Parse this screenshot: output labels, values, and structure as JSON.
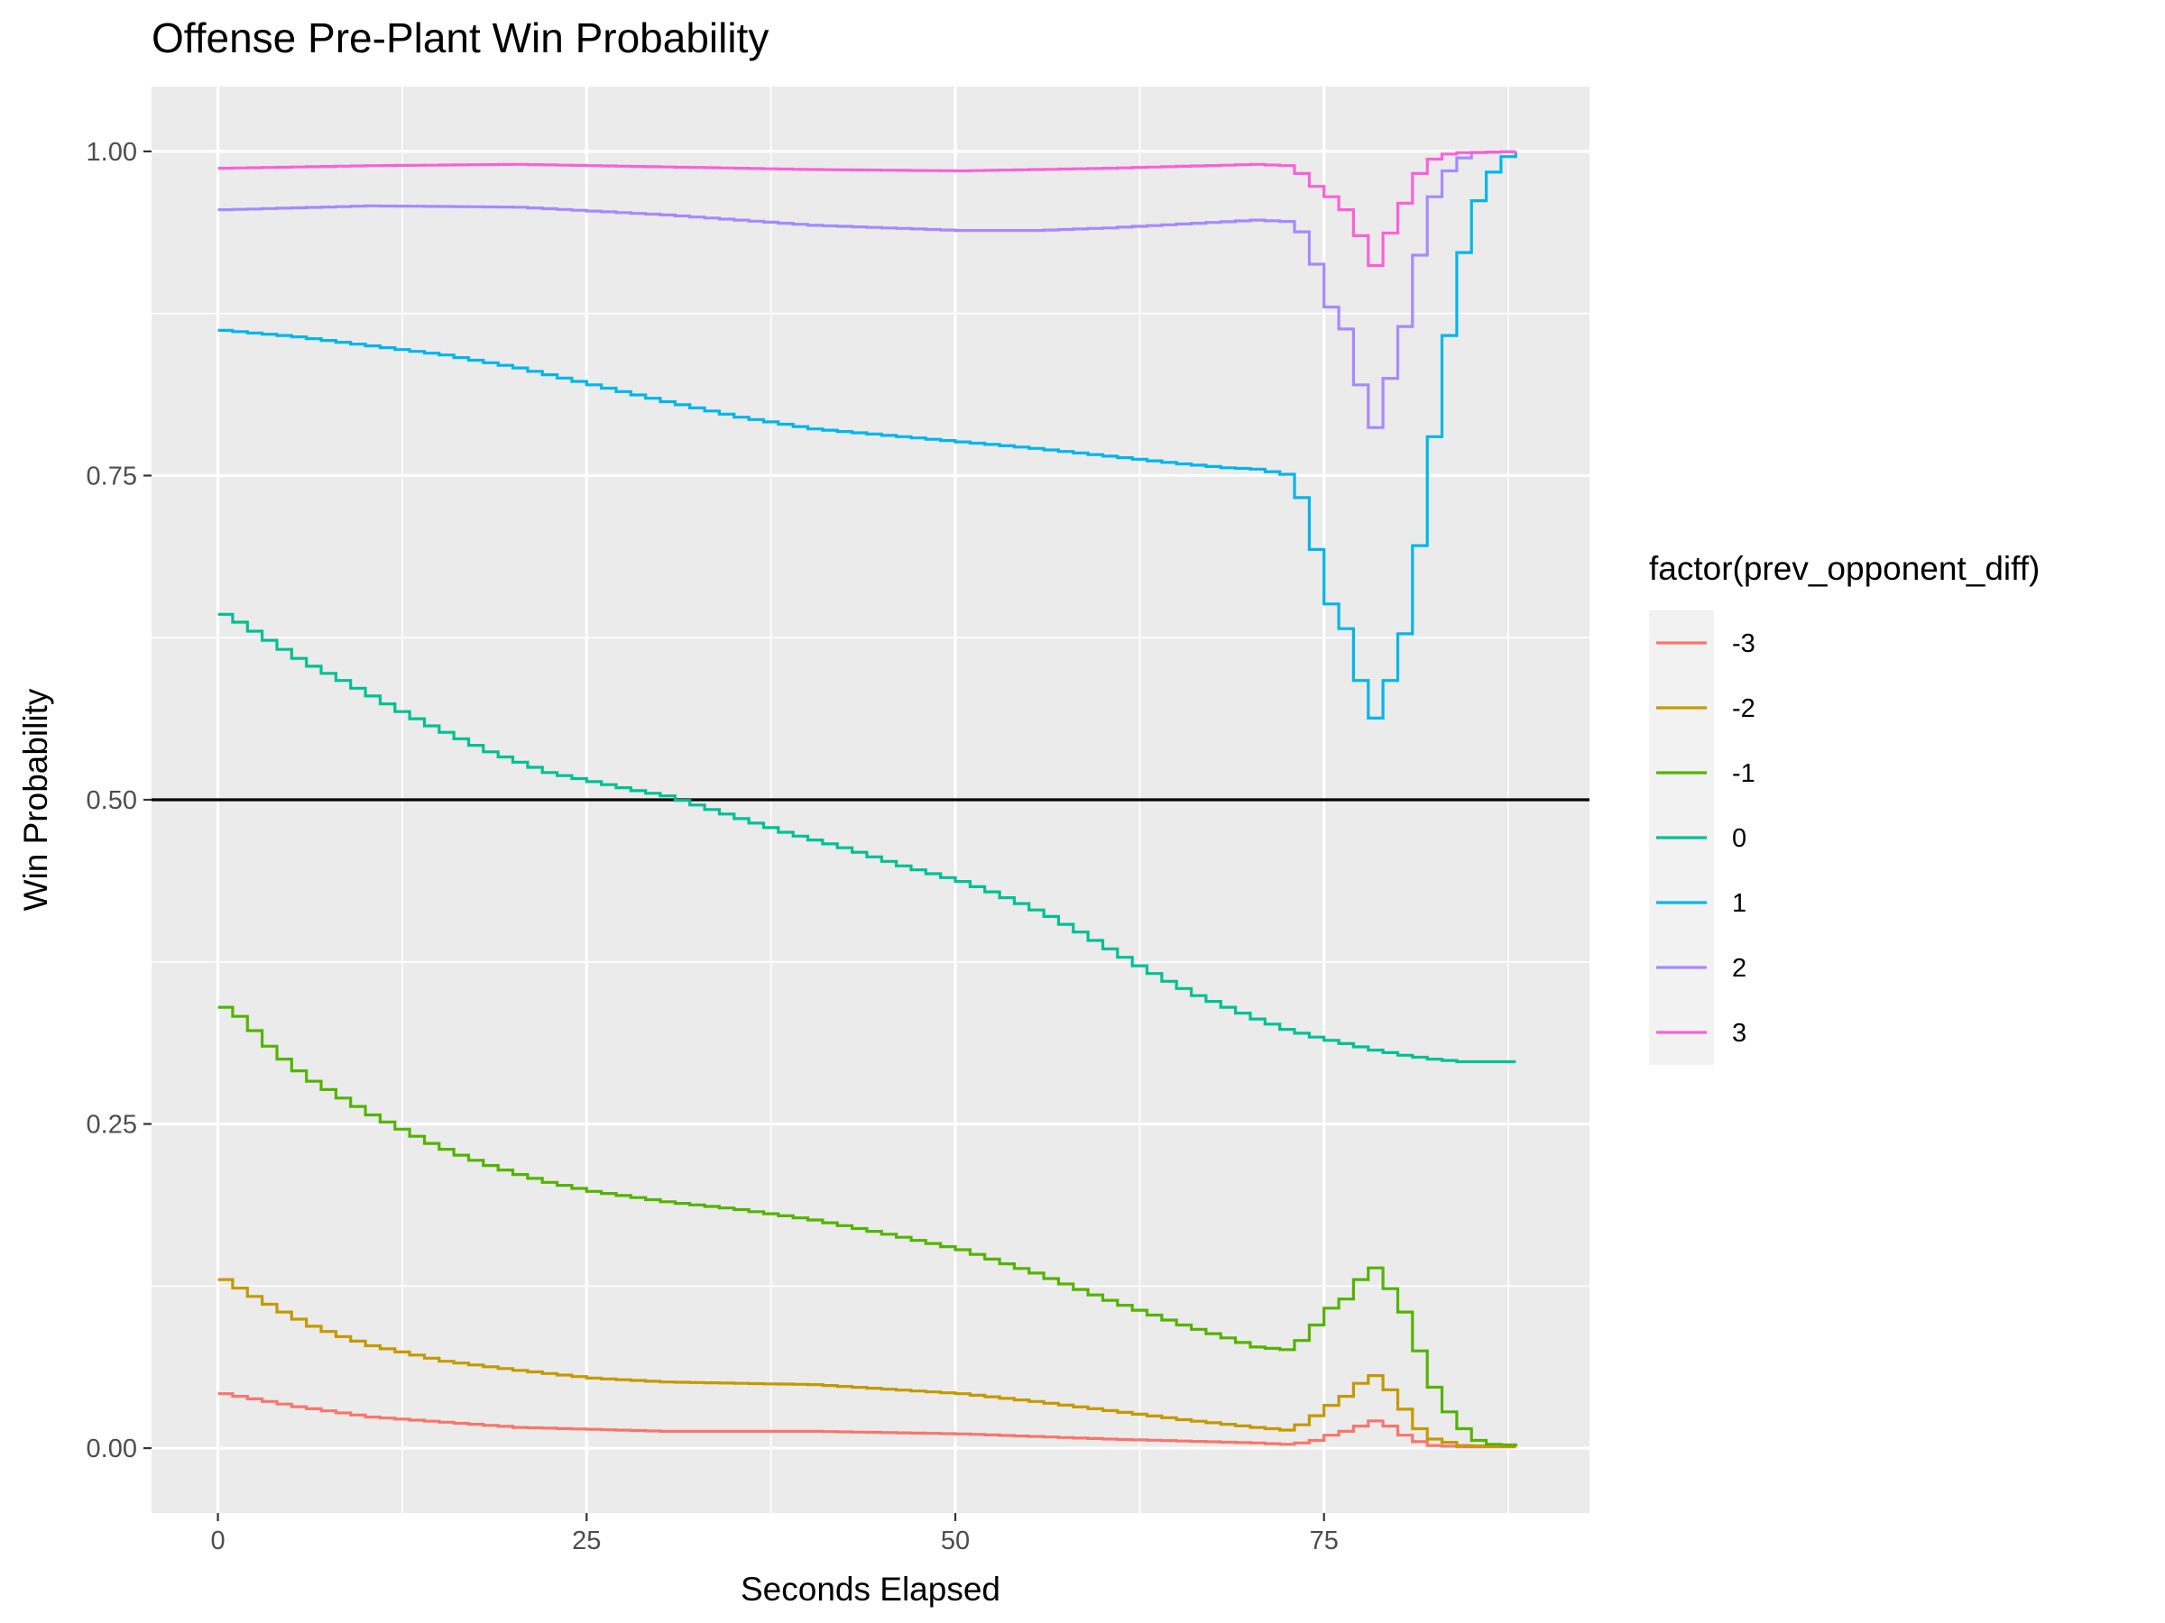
{
  "chart_data": {
    "type": "line",
    "title": "Offense Pre-Plant Win Probability",
    "xlabel": "Seconds Elapsed",
    "ylabel": "Win Probability",
    "xlim": [
      -4.5,
      93
    ],
    "ylim": [
      -0.05,
      1.05
    ],
    "x_ticks": [
      0,
      25,
      50,
      75
    ],
    "x_tick_labels": [
      "0",
      "25",
      "50",
      "75"
    ],
    "y_ticks": [
      0,
      0.25,
      0.5,
      0.75,
      1.0
    ],
    "y_tick_labels": [
      "0.00",
      "0.25",
      "0.50",
      "0.75",
      "1.00"
    ],
    "grid": true,
    "step": true,
    "reference_line": {
      "y": 0.5,
      "color": "#000000"
    },
    "legend": {
      "title": "factor(prev_opponent_diff)",
      "position": "right"
    },
    "series": [
      {
        "name": "-3",
        "color": "#F8766D",
        "points": [
          [
            0,
            0.042
          ],
          [
            5,
            0.032
          ],
          [
            10,
            0.024
          ],
          [
            20,
            0.016
          ],
          [
            30,
            0.013
          ],
          [
            40,
            0.013
          ],
          [
            50,
            0.011
          ],
          [
            60,
            0.007
          ],
          [
            70,
            0.004
          ],
          [
            72,
            0.003
          ],
          [
            73,
            0.004
          ],
          [
            74,
            0.006
          ],
          [
            75,
            0.01
          ],
          [
            76,
            0.013
          ],
          [
            77,
            0.017
          ],
          [
            78,
            0.021
          ],
          [
            79,
            0.017
          ],
          [
            80,
            0.01
          ],
          [
            81,
            0.005
          ],
          [
            82,
            0.002
          ],
          [
            84,
            0.001
          ],
          [
            88,
            0.001
          ]
        ]
      },
      {
        "name": "-2",
        "color": "#C49A00",
        "points": [
          [
            0,
            0.13
          ],
          [
            2,
            0.117
          ],
          [
            4,
            0.105
          ],
          [
            6,
            0.094
          ],
          [
            8,
            0.086
          ],
          [
            10,
            0.079
          ],
          [
            15,
            0.067
          ],
          [
            20,
            0.06
          ],
          [
            25,
            0.054
          ],
          [
            30,
            0.051
          ],
          [
            40,
            0.049
          ],
          [
            50,
            0.042
          ],
          [
            55,
            0.036
          ],
          [
            60,
            0.029
          ],
          [
            65,
            0.022
          ],
          [
            70,
            0.016
          ],
          [
            72,
            0.014
          ],
          [
            73,
            0.018
          ],
          [
            74,
            0.025
          ],
          [
            75,
            0.033
          ],
          [
            76,
            0.04
          ],
          [
            77,
            0.05
          ],
          [
            78,
            0.056
          ],
          [
            79,
            0.045
          ],
          [
            80,
            0.03
          ],
          [
            81,
            0.015
          ],
          [
            82,
            0.007
          ],
          [
            84,
            0.002
          ],
          [
            88,
            0.001
          ]
        ]
      },
      {
        "name": "-1",
        "color": "#53B400",
        "points": [
          [
            0,
            0.34
          ],
          [
            1,
            0.333
          ],
          [
            2,
            0.322
          ],
          [
            3,
            0.31
          ],
          [
            4,
            0.3
          ],
          [
            5,
            0.291
          ],
          [
            6,
            0.283
          ],
          [
            8,
            0.27
          ],
          [
            10,
            0.257
          ],
          [
            12,
            0.246
          ],
          [
            14,
            0.235
          ],
          [
            16,
            0.226
          ],
          [
            18,
            0.218
          ],
          [
            20,
            0.211
          ],
          [
            22,
            0.205
          ],
          [
            25,
            0.198
          ],
          [
            30,
            0.19
          ],
          [
            35,
            0.184
          ],
          [
            40,
            0.176
          ],
          [
            45,
            0.165
          ],
          [
            50,
            0.153
          ],
          [
            55,
            0.135
          ],
          [
            60,
            0.114
          ],
          [
            65,
            0.095
          ],
          [
            68,
            0.085
          ],
          [
            70,
            0.078
          ],
          [
            72,
            0.076
          ],
          [
            73,
            0.083
          ],
          [
            74,
            0.095
          ],
          [
            75,
            0.108
          ],
          [
            76,
            0.115
          ],
          [
            77,
            0.13
          ],
          [
            78,
            0.139
          ],
          [
            79,
            0.123
          ],
          [
            80,
            0.105
          ],
          [
            81,
            0.075
          ],
          [
            82,
            0.047
          ],
          [
            83,
            0.028
          ],
          [
            84,
            0.015
          ],
          [
            85,
            0.006
          ],
          [
            86,
            0.003
          ],
          [
            88,
            0.002
          ]
        ]
      },
      {
        "name": "0",
        "color": "#00C094",
        "points": [
          [
            0,
            0.643
          ],
          [
            1,
            0.637
          ],
          [
            2,
            0.63
          ],
          [
            3,
            0.623
          ],
          [
            4,
            0.616
          ],
          [
            5,
            0.609
          ],
          [
            6,
            0.603
          ],
          [
            8,
            0.592
          ],
          [
            10,
            0.58
          ],
          [
            12,
            0.568
          ],
          [
            14,
            0.557
          ],
          [
            16,
            0.547
          ],
          [
            18,
            0.537
          ],
          [
            20,
            0.529
          ],
          [
            22,
            0.521
          ],
          [
            25,
            0.514
          ],
          [
            28,
            0.507
          ],
          [
            30,
            0.503
          ],
          [
            32,
            0.496
          ],
          [
            34,
            0.489
          ],
          [
            36,
            0.482
          ],
          [
            38,
            0.475
          ],
          [
            40,
            0.469
          ],
          [
            42,
            0.463
          ],
          [
            44,
            0.456
          ],
          [
            46,
            0.449
          ],
          [
            48,
            0.443
          ],
          [
            50,
            0.437
          ],
          [
            52,
            0.429
          ],
          [
            54,
            0.42
          ],
          [
            56,
            0.41
          ],
          [
            58,
            0.398
          ],
          [
            60,
            0.385
          ],
          [
            62,
            0.372
          ],
          [
            64,
            0.36
          ],
          [
            66,
            0.349
          ],
          [
            68,
            0.34
          ],
          [
            70,
            0.331
          ],
          [
            72,
            0.323
          ],
          [
            74,
            0.317
          ],
          [
            76,
            0.312
          ],
          [
            78,
            0.307
          ],
          [
            80,
            0.303
          ],
          [
            82,
            0.3
          ],
          [
            84,
            0.298
          ],
          [
            86,
            0.298
          ],
          [
            88,
            0.298
          ]
        ]
      },
      {
        "name": "1",
        "color": "#00B6EB",
        "points": [
          [
            0,
            0.862
          ],
          [
            5,
            0.857
          ],
          [
            10,
            0.85
          ],
          [
            15,
            0.843
          ],
          [
            20,
            0.833
          ],
          [
            25,
            0.82
          ],
          [
            30,
            0.807
          ],
          [
            35,
            0.795
          ],
          [
            40,
            0.786
          ],
          [
            45,
            0.781
          ],
          [
            50,
            0.776
          ],
          [
            55,
            0.771
          ],
          [
            60,
            0.765
          ],
          [
            65,
            0.759
          ],
          [
            68,
            0.756
          ],
          [
            70,
            0.755
          ],
          [
            72,
            0.751
          ],
          [
            73,
            0.733
          ],
          [
            74,
            0.693
          ],
          [
            75,
            0.651
          ],
          [
            76,
            0.632
          ],
          [
            77,
            0.592
          ],
          [
            78,
            0.563
          ],
          [
            79,
            0.592
          ],
          [
            80,
            0.628
          ],
          [
            81,
            0.696
          ],
          [
            82,
            0.78
          ],
          [
            83,
            0.858
          ],
          [
            84,
            0.922
          ],
          [
            85,
            0.962
          ],
          [
            86,
            0.984
          ],
          [
            87,
            0.996
          ],
          [
            88,
            0.999
          ]
        ]
      },
      {
        "name": "2",
        "color": "#A58AFF",
        "points": [
          [
            0,
            0.955
          ],
          [
            10,
            0.958
          ],
          [
            20,
            0.957
          ],
          [
            30,
            0.951
          ],
          [
            40,
            0.943
          ],
          [
            50,
            0.939
          ],
          [
            55,
            0.939
          ],
          [
            60,
            0.941
          ],
          [
            65,
            0.944
          ],
          [
            70,
            0.947
          ],
          [
            72,
            0.946
          ],
          [
            73,
            0.938
          ],
          [
            74,
            0.913
          ],
          [
            75,
            0.88
          ],
          [
            76,
            0.863
          ],
          [
            77,
            0.82
          ],
          [
            78,
            0.787
          ],
          [
            79,
            0.825
          ],
          [
            80,
            0.865
          ],
          [
            81,
            0.92
          ],
          [
            82,
            0.965
          ],
          [
            83,
            0.985
          ],
          [
            84,
            0.995
          ],
          [
            85,
            0.999
          ],
          [
            88,
            1.0
          ]
        ]
      },
      {
        "name": "3",
        "color": "#FB61D7",
        "points": [
          [
            0,
            0.987
          ],
          [
            10,
            0.989
          ],
          [
            20,
            0.99
          ],
          [
            30,
            0.988
          ],
          [
            40,
            0.986
          ],
          [
            50,
            0.985
          ],
          [
            60,
            0.987
          ],
          [
            70,
            0.99
          ],
          [
            72,
            0.989
          ],
          [
            73,
            0.983
          ],
          [
            74,
            0.973
          ],
          [
            75,
            0.965
          ],
          [
            76,
            0.955
          ],
          [
            77,
            0.935
          ],
          [
            78,
            0.912
          ],
          [
            79,
            0.937
          ],
          [
            80,
            0.96
          ],
          [
            81,
            0.983
          ],
          [
            82,
            0.994
          ],
          [
            83,
            0.998
          ],
          [
            84,
            0.999
          ],
          [
            88,
            1.0
          ]
        ]
      }
    ]
  }
}
